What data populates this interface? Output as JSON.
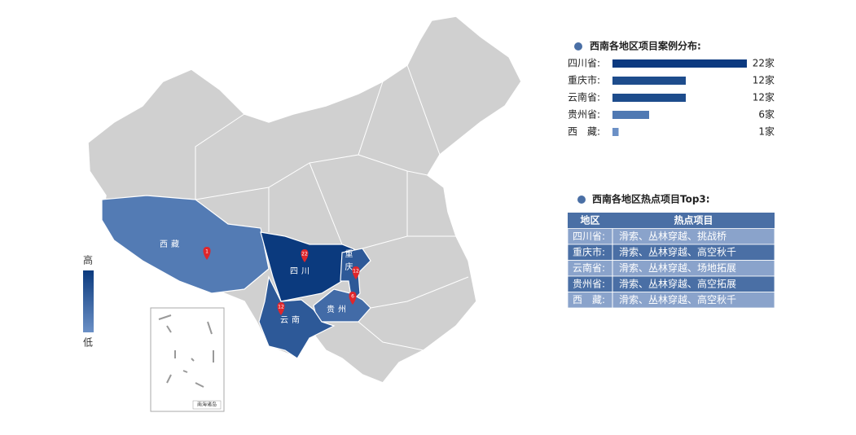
{
  "map": {
    "inset_label": "南海诸岛",
    "legend": {
      "high_label": "高",
      "low_label": "低",
      "colors": [
        "#0b3a7e",
        "#6b90c6"
      ]
    },
    "regions": [
      {
        "name": "西藏",
        "value": 1
      },
      {
        "name": "四川",
        "value": 22
      },
      {
        "name": "重庆",
        "value": 12
      },
      {
        "name": "贵州",
        "value": 6
      },
      {
        "name": "云南",
        "value": 12
      }
    ]
  },
  "chart_data": {
    "type": "bar",
    "title": "西南各地区项目案例分布:",
    "categories": [
      "四川省:",
      "重庆市:",
      "云南省:",
      "贵州省:",
      "西　藏:"
    ],
    "values": [
      22,
      12,
      12,
      6,
      1
    ],
    "value_labels": [
      "22家",
      "12家",
      "12家",
      "6家",
      "1家"
    ],
    "colors": [
      "#0c3a80",
      "#1d4c8c",
      "#1d4c8c",
      "#5079b3",
      "#6b90c6"
    ]
  },
  "table": {
    "title": "西南各地区热点项目Top3:",
    "header": [
      "地区",
      "热点项目"
    ],
    "rows": [
      [
        "四川省:",
        "滑索、丛林穿越、挑战桥"
      ],
      [
        "重庆市:",
        "滑索、丛林穿越、高空秋千"
      ],
      [
        "云南省:",
        "滑索、丛林穿越、场地拓展"
      ],
      [
        "贵州省:",
        "滑索、丛林穿越、高空拓展"
      ],
      [
        "西　藏:",
        "滑索、丛林穿越、高空秋千"
      ]
    ]
  }
}
